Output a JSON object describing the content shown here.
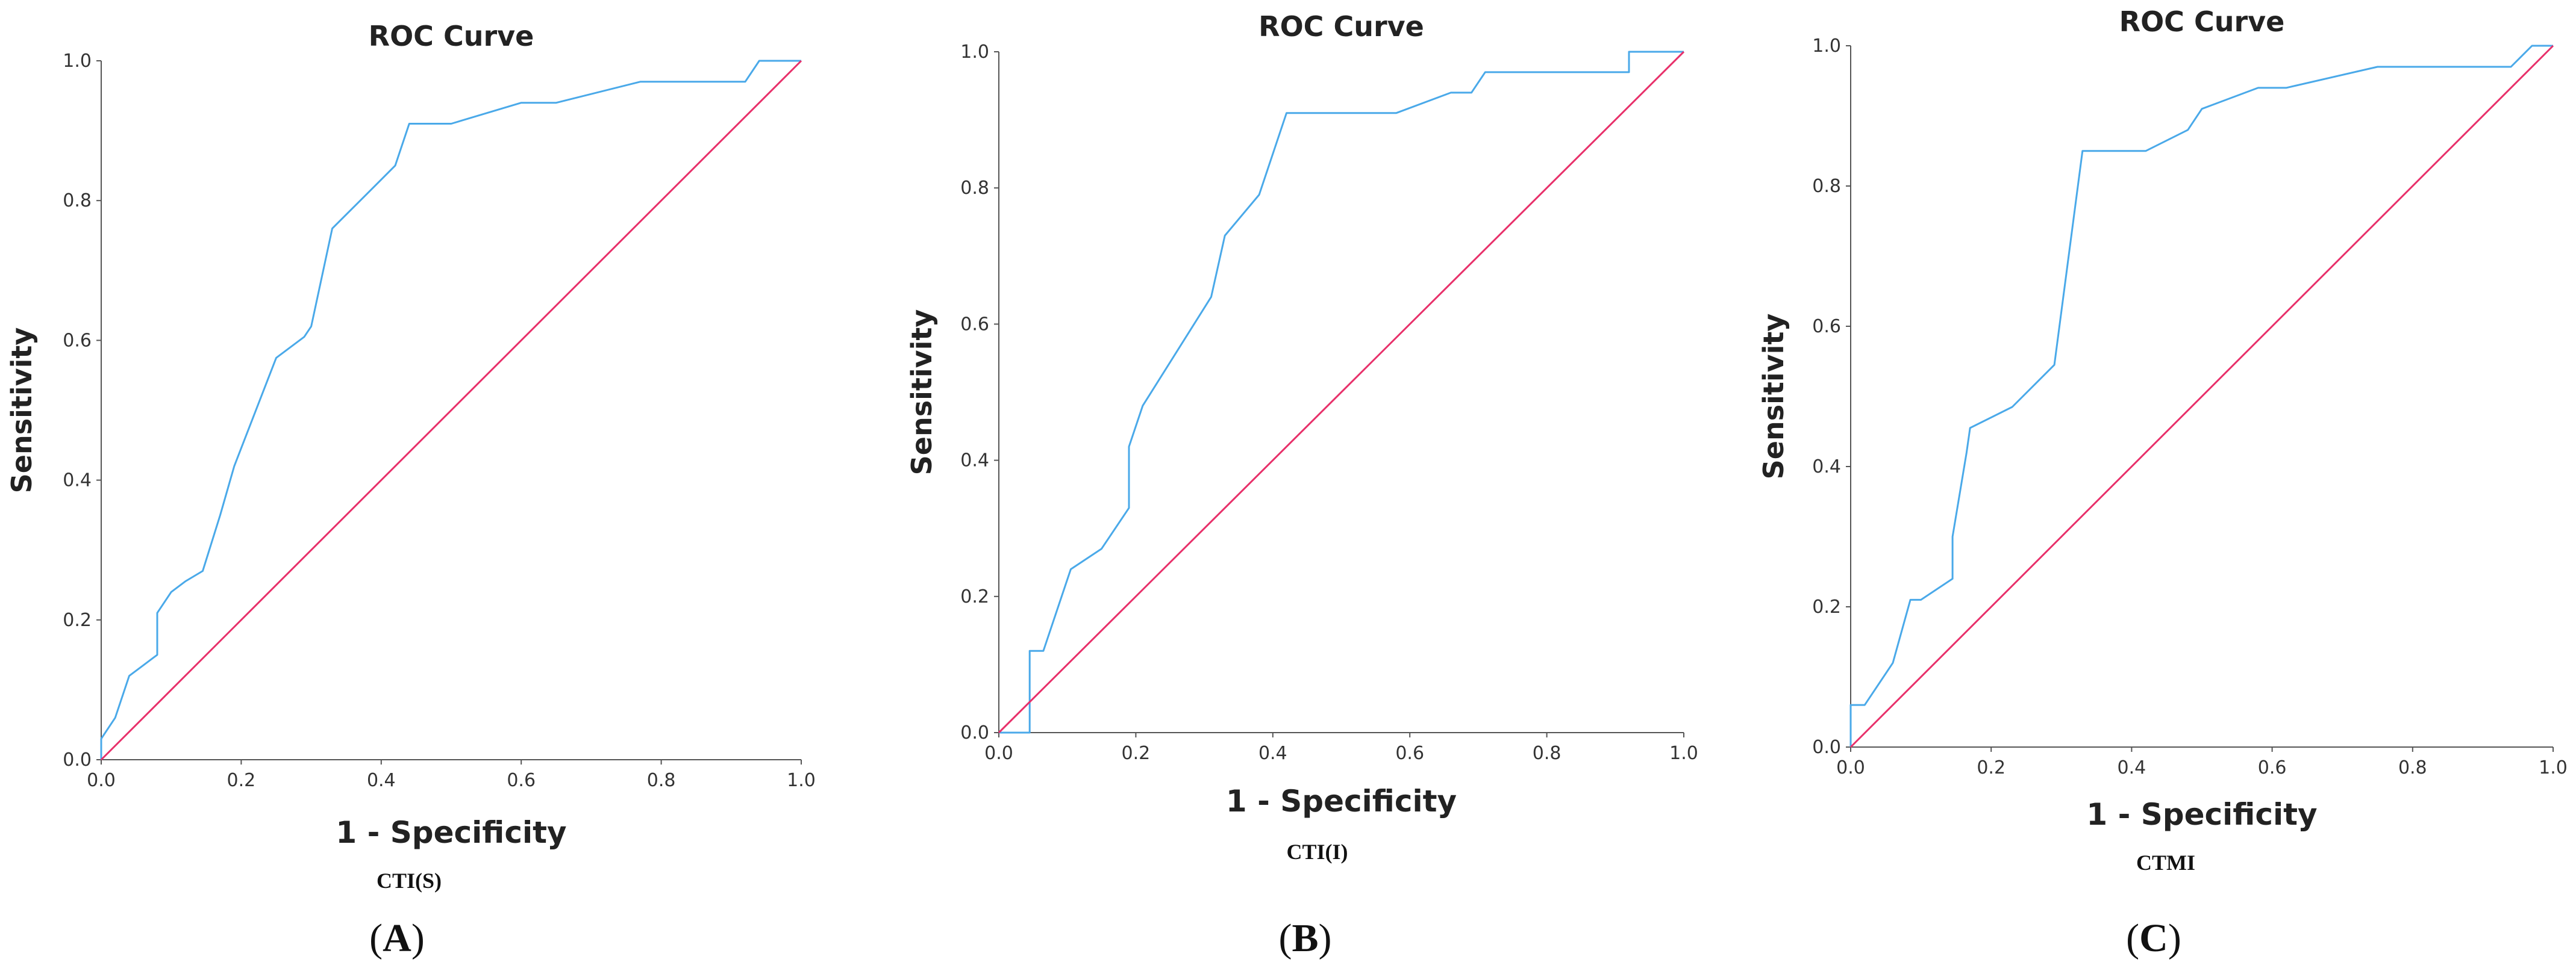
{
  "figure": {
    "panels": [
      {
        "label_letter": "A",
        "caption": "CTI(S)",
        "chart_data": {
          "type": "line",
          "title": "ROC Curve",
          "xlabel": "1 - Specificity",
          "ylabel": "Sensitivity",
          "xlim": [
            0,
            1
          ],
          "ylim": [
            0,
            1
          ],
          "x_ticks": [
            "0.0",
            "0.2",
            "0.4",
            "0.6",
            "0.8",
            "1.0"
          ],
          "y_ticks": [
            "0.0",
            "0.2",
            "0.4",
            "0.6",
            "0.8",
            "1.0"
          ],
          "grid": false,
          "series": [
            {
              "name": "ROC",
              "color": "#4aa9e9",
              "x": [
                0,
                0,
                0.02,
                0.04,
                0.06,
                0.08,
                0.08,
                0.1,
                0.12,
                0.145,
                0.17,
                0.19,
                0.25,
                0.29,
                0.3,
                0.33,
                0.38,
                0.42,
                0.44,
                0.5,
                0.6,
                0.65,
                0.77,
                0.92,
                0.94,
                1.0
              ],
              "y": [
                0,
                0.03,
                0.06,
                0.12,
                0.135,
                0.15,
                0.21,
                0.24,
                0.255,
                0.27,
                0.35,
                0.42,
                0.575,
                0.605,
                0.62,
                0.76,
                0.81,
                0.85,
                0.91,
                0.91,
                0.94,
                0.94,
                0.97,
                0.97,
                1.0,
                1.0
              ]
            },
            {
              "name": "Reference",
              "color": "#e8306a",
              "x": [
                0,
                1
              ],
              "y": [
                0,
                1
              ]
            }
          ]
        }
      },
      {
        "label_letter": "B",
        "caption": "CTI(I)",
        "chart_data": {
          "type": "line",
          "title": "ROC Curve",
          "xlabel": "1 - Specificity",
          "ylabel": "Sensitivity",
          "xlim": [
            0,
            1
          ],
          "ylim": [
            0,
            1
          ],
          "x_ticks": [
            "0.0",
            "0.2",
            "0.4",
            "0.6",
            "0.8",
            "1.0"
          ],
          "y_ticks": [
            "0.0",
            "0.2",
            "0.4",
            "0.6",
            "0.8",
            "1.0"
          ],
          "grid": false,
          "series": [
            {
              "name": "ROC",
              "color": "#4aa9e9",
              "x": [
                0,
                0.045,
                0.045,
                0.045,
                0.065,
                0.105,
                0.15,
                0.19,
                0.19,
                0.21,
                0.31,
                0.33,
                0.38,
                0.42,
                0.58,
                0.66,
                0.69,
                0.71,
                0.92,
                0.92,
                1.0
              ],
              "y": [
                0,
                0,
                0.12,
                0.12,
                0.12,
                0.24,
                0.27,
                0.33,
                0.42,
                0.48,
                0.64,
                0.73,
                0.79,
                0.91,
                0.91,
                0.94,
                0.94,
                0.97,
                0.97,
                1.0,
                1.0
              ]
            },
            {
              "name": "Reference",
              "color": "#e8306a",
              "x": [
                0,
                1
              ],
              "y": [
                0,
                1
              ]
            }
          ]
        }
      },
      {
        "label_letter": "C",
        "caption": "CTMI",
        "chart_data": {
          "type": "line",
          "title": "ROC Curve",
          "xlabel": "1 - Specificity",
          "ylabel": "Sensitivity",
          "xlim": [
            0,
            1
          ],
          "ylim": [
            0,
            1
          ],
          "x_ticks": [
            "0.0",
            "0.2",
            "0.4",
            "0.6",
            "0.8",
            "1.0"
          ],
          "y_ticks": [
            "0.0",
            "0.2",
            "0.4",
            "0.6",
            "0.8",
            "1.0"
          ],
          "grid": false,
          "series": [
            {
              "name": "ROC",
              "color": "#4aa9e9",
              "x": [
                0,
                0,
                0.02,
                0.06,
                0.085,
                0.1,
                0.145,
                0.145,
                0.165,
                0.17,
                0.23,
                0.29,
                0.33,
                0.42,
                0.48,
                0.5,
                0.58,
                0.62,
                0.75,
                0.94,
                0.97,
                1.0
              ],
              "y": [
                0,
                0.06,
                0.06,
                0.12,
                0.21,
                0.21,
                0.24,
                0.3,
                0.42,
                0.455,
                0.485,
                0.545,
                0.85,
                0.85,
                0.88,
                0.91,
                0.94,
                0.94,
                0.97,
                0.97,
                1.0,
                1.0
              ]
            },
            {
              "name": "Reference",
              "color": "#e8306a",
              "x": [
                0,
                1
              ],
              "y": [
                0,
                1
              ]
            }
          ]
        }
      }
    ]
  }
}
